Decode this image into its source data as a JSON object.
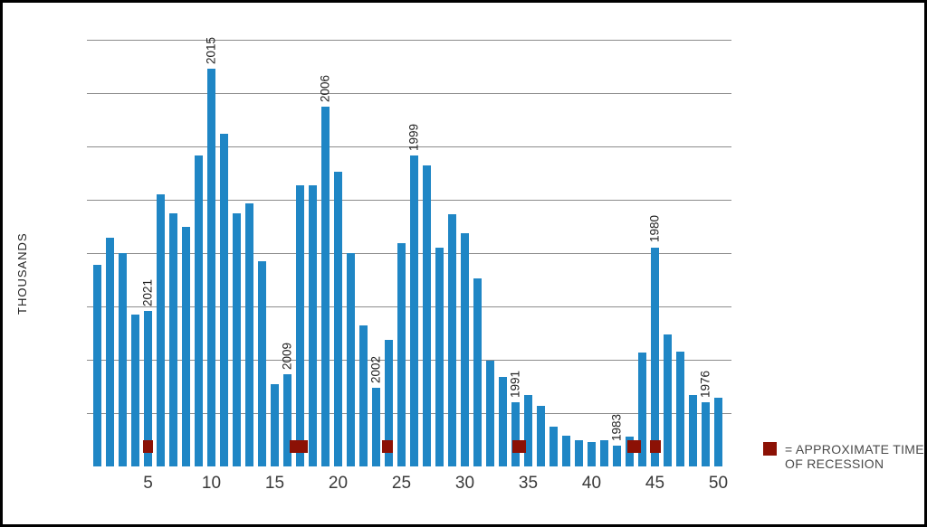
{
  "chart_data": {
    "type": "bar",
    "title": "",
    "ylabel": "THOUSANDS",
    "xlabel": "",
    "ylim": [
      0,
      80
    ],
    "grid": true,
    "y_ticks": [
      0,
      10,
      20,
      30,
      40,
      50,
      60,
      70,
      80
    ],
    "x_ticks": [
      5,
      10,
      15,
      20,
      25,
      30,
      35,
      40,
      45,
      50
    ],
    "bar_color": "#1f86c5",
    "recession_color": "#8c1105",
    "values": [
      37.8,
      42.8,
      40.0,
      28.4,
      29.2,
      51.0,
      47.5,
      45.0,
      58.3,
      74.6,
      62.4,
      47.4,
      49.3,
      38.5,
      15.4,
      17.3,
      52.7,
      52.7,
      67.4,
      55.2,
      40.0,
      26.5,
      14.7,
      23.8,
      41.9,
      58.3,
      56.5,
      41.0,
      47.3,
      43.7,
      35.3,
      19.8,
      16.8,
      12.1,
      13.4,
      11.3,
      7.4,
      5.8,
      5.0,
      4.6,
      5.0,
      3.9,
      5.6,
      21.4,
      41.1,
      24.7,
      21.5,
      13.4,
      12.0,
      12.9
    ],
    "annotations": [
      {
        "bar": 5,
        "year": "2021"
      },
      {
        "bar": 10,
        "year": "2015"
      },
      {
        "bar": 16,
        "year": "2009"
      },
      {
        "bar": 19,
        "year": "2006"
      },
      {
        "bar": 23,
        "year": "2002"
      },
      {
        "bar": 26,
        "year": "1999"
      },
      {
        "bar": 34,
        "year": "1991"
      },
      {
        "bar": 42,
        "year": "1983"
      },
      {
        "bar": 45,
        "year": "1980"
      },
      {
        "bar": 49,
        "year": "1976"
      }
    ],
    "recession_markers": [
      {
        "center_bar": 5.0,
        "width_bars": 0.75
      },
      {
        "center_bar": 16.9,
        "width_bars": 1.43
      },
      {
        "center_bar": 23.9,
        "width_bars": 0.86
      },
      {
        "center_bar": 34.3,
        "width_bars": 1.07
      },
      {
        "center_bar": 43.35,
        "width_bars": 1.07
      },
      {
        "center_bar": 45.05,
        "width_bars": 0.83
      }
    ],
    "legend": {
      "label_line1": "= APPROXIMATE TIME",
      "label_line2": "OF RECESSION"
    }
  }
}
